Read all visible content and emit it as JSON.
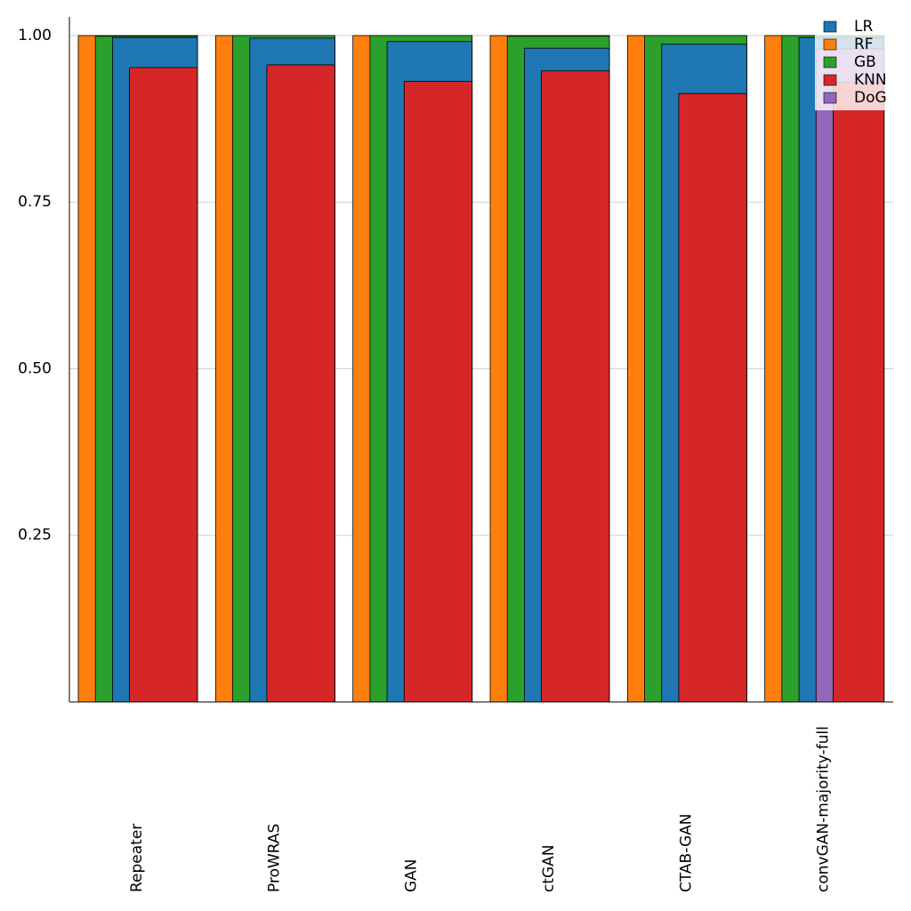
{
  "chart_data": {
    "type": "bar",
    "categories": [
      "Repeater",
      "ProWRAS",
      "GAN",
      "ctGAN",
      "CTAB-GAN",
      "convGAN-majority-full"
    ],
    "series": [
      {
        "name": "LR",
        "color": "#1f77b4",
        "values": [
          0.997,
          0.996,
          0.991,
          0.981,
          0.987,
          0.997
        ]
      },
      {
        "name": "RF",
        "color": "#ff7f0e",
        "values": [
          1.0,
          1.0,
          1.0,
          1.0,
          1.0,
          1.0
        ]
      },
      {
        "name": "GB",
        "color": "#2ca02c",
        "values": [
          0.999,
          1.0,
          1.0,
          0.999,
          1.0,
          1.0
        ]
      },
      {
        "name": "KNN",
        "color": "#d62728",
        "values": [
          0.952,
          0.956,
          0.931,
          0.947,
          0.913,
          0.93
        ]
      },
      {
        "name": "DoG",
        "color": "#9467bd",
        "values": [
          null,
          null,
          null,
          null,
          null,
          0.98
        ]
      }
    ],
    "ylim": [
      0,
      1.028
    ],
    "yticks": [
      {
        "value": 0.25,
        "label": "0.25"
      },
      {
        "value": 0.5,
        "label": "0.50"
      },
      {
        "value": 0.75,
        "label": "0.75"
      },
      {
        "value": 1.0,
        "label": "1.00"
      }
    ],
    "grid": true,
    "legend": "upper right"
  }
}
